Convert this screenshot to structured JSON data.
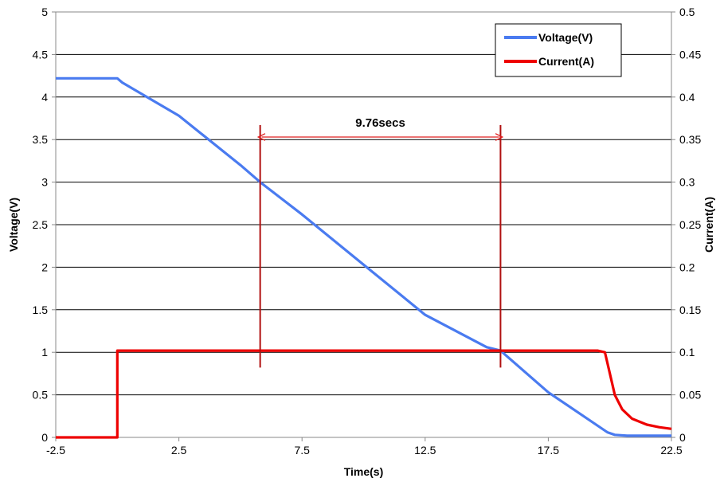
{
  "chart_data": {
    "type": "line",
    "xlabel": "Time(s)",
    "ylabel": "Voltage(V)",
    "y2label": "Current(A)",
    "xlim": [
      -2.5,
      22.5
    ],
    "ylim": [
      0,
      5
    ],
    "y2lim": [
      0,
      0.5
    ],
    "grid": true,
    "legend": "top-right",
    "x_ticks": [
      "-2.5",
      "2.5",
      "7.5",
      "12.5",
      "17.5",
      "22.5"
    ],
    "y_ticks": [
      "0",
      "0.5",
      "1",
      "1.5",
      "2",
      "2.5",
      "3",
      "3.5",
      "4",
      "4.5",
      "5"
    ],
    "y2_ticks": [
      "0",
      "0.05",
      "0.1",
      "0.15",
      "0.2",
      "0.25",
      "0.3",
      "0.35",
      "0.4",
      "0.45",
      "0.5"
    ],
    "series": [
      {
        "name": "Voltage(V)",
        "axis": "left",
        "color": "#4a7bf0",
        "x": [
          -2.5,
          0.0,
          0.2,
          2.5,
          5.0,
          5.8,
          7.5,
          10.0,
          12.5,
          15.0,
          15.56,
          17.5,
          19.9,
          20.2,
          20.7,
          22.5
        ],
        "y": [
          4.22,
          4.22,
          4.17,
          3.78,
          3.2,
          3.0,
          2.62,
          2.03,
          1.44,
          1.06,
          1.02,
          0.53,
          0.06,
          0.03,
          0.02,
          0.02
        ]
      },
      {
        "name": "Current(A)",
        "axis": "right",
        "color": "#ee0000",
        "x": [
          -2.5,
          0.0,
          0.0,
          19.5,
          19.8,
          20.0,
          20.2,
          20.5,
          20.9,
          21.5,
          22.0,
          22.5
        ],
        "y": [
          0,
          0,
          0.102,
          0.102,
          0.1,
          0.075,
          0.05,
          0.033,
          0.022,
          0.015,
          0.012,
          0.01
        ]
      }
    ],
    "annotations": [
      {
        "type": "vline",
        "x": 5.8,
        "y_from": 0.82,
        "y_to": 3.67,
        "color": "#b01010"
      },
      {
        "type": "vline",
        "x": 15.56,
        "y_from": 0.82,
        "y_to": 3.67,
        "color": "#b01010"
      },
      {
        "type": "span-arrow",
        "x_from": 5.8,
        "x_to": 15.56,
        "y": 3.53,
        "label": "9.76secs",
        "color": "#e02020"
      }
    ]
  }
}
